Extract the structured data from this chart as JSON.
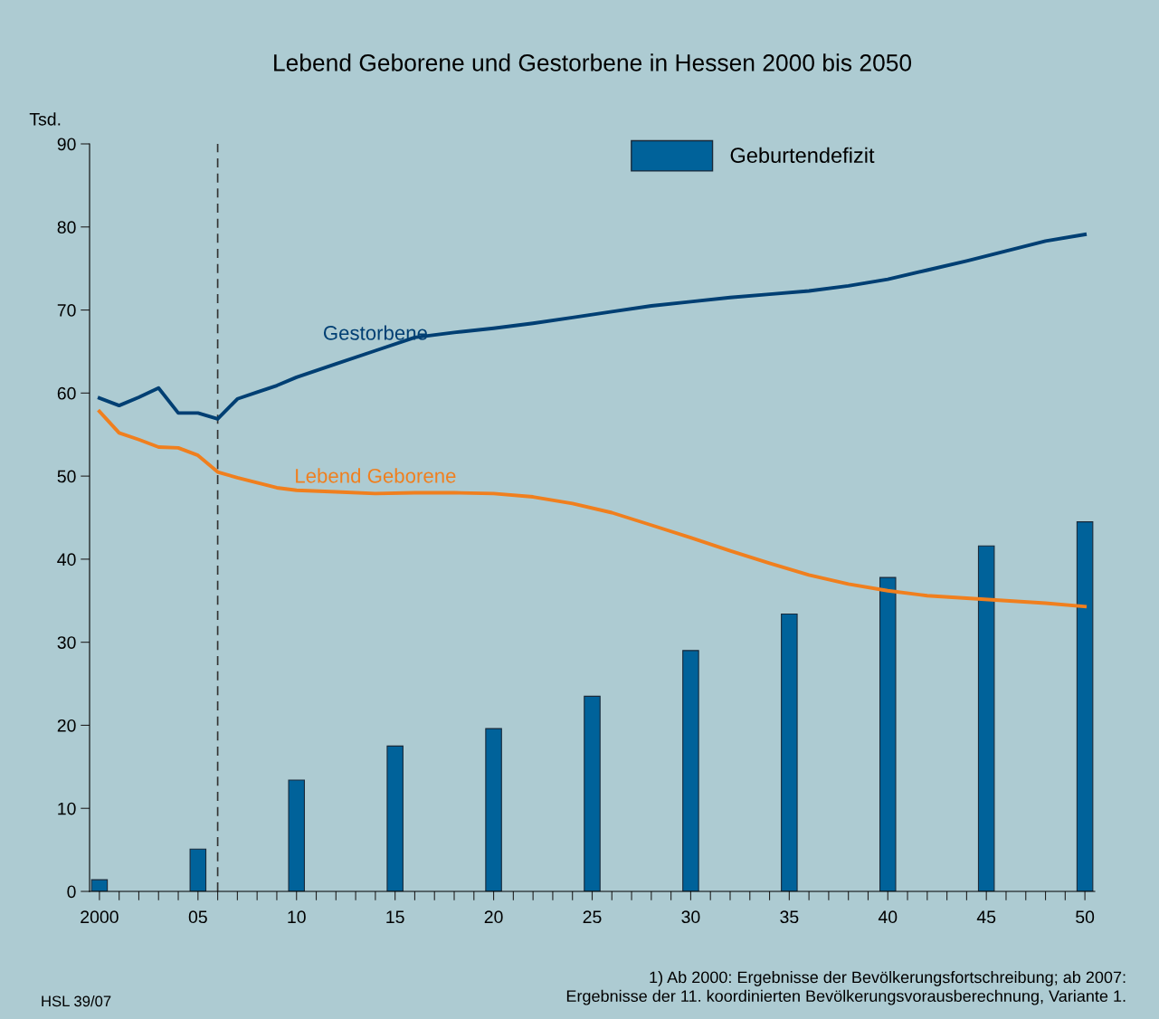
{
  "chart_data": {
    "type": "line",
    "title": "Lebend Geborene und Gestorbene in Hessen 2000 bis 2050",
    "ylabel": "Tsd.",
    "xlim": [
      1999.5,
      2050.5
    ],
    "xticks": [
      {
        "value": 2000,
        "label": "2000"
      },
      {
        "value": 2001,
        "label": null
      },
      {
        "value": 2002,
        "label": null
      },
      {
        "value": 2003,
        "label": null
      },
      {
        "value": 2004,
        "label": null
      },
      {
        "value": 2005,
        "label": "05"
      },
      {
        "value": 2006,
        "label": null
      },
      {
        "value": 2007,
        "label": null
      },
      {
        "value": 2008,
        "label": null
      },
      {
        "value": 2009,
        "label": null
      },
      {
        "value": 2010,
        "label": "10"
      },
      {
        "value": 2011,
        "label": null
      },
      {
        "value": 2012,
        "label": null
      },
      {
        "value": 2013,
        "label": null
      },
      {
        "value": 2014,
        "label": null
      },
      {
        "value": 2015,
        "label": "15"
      },
      {
        "value": 2016,
        "label": null
      },
      {
        "value": 2017,
        "label": null
      },
      {
        "value": 2018,
        "label": null
      },
      {
        "value": 2019,
        "label": null
      },
      {
        "value": 2020,
        "label": "20"
      },
      {
        "value": 2021,
        "label": null
      },
      {
        "value": 2022,
        "label": null
      },
      {
        "value": 2023,
        "label": null
      },
      {
        "value": 2024,
        "label": null
      },
      {
        "value": 2025,
        "label": "25"
      },
      {
        "value": 2026,
        "label": null
      },
      {
        "value": 2027,
        "label": null
      },
      {
        "value": 2028,
        "label": null
      },
      {
        "value": 2029,
        "label": null
      },
      {
        "value": 2030,
        "label": "30"
      },
      {
        "value": 2031,
        "label": null
      },
      {
        "value": 2032,
        "label": null
      },
      {
        "value": 2033,
        "label": null
      },
      {
        "value": 2034,
        "label": null
      },
      {
        "value": 2035,
        "label": "35"
      },
      {
        "value": 2036,
        "label": null
      },
      {
        "value": 2037,
        "label": null
      },
      {
        "value": 2038,
        "label": null
      },
      {
        "value": 2039,
        "label": null
      },
      {
        "value": 2040,
        "label": "40"
      },
      {
        "value": 2041,
        "label": null
      },
      {
        "value": 2042,
        "label": null
      },
      {
        "value": 2043,
        "label": null
      },
      {
        "value": 2044,
        "label": null
      },
      {
        "value": 2045,
        "label": "45"
      },
      {
        "value": 2046,
        "label": null
      },
      {
        "value": 2047,
        "label": null
      },
      {
        "value": 2048,
        "label": null
      },
      {
        "value": 2049,
        "label": null
      },
      {
        "value": 2050,
        "label": "50"
      }
    ],
    "ylim": [
      0,
      90
    ],
    "yticks": [
      0,
      10,
      20,
      30,
      40,
      50,
      60,
      70,
      80,
      90
    ],
    "grid": false,
    "legend": "top right",
    "ref_lines": [
      {
        "axis": "x",
        "value": 2006,
        "color": "#333333",
        "line_style": "dashed"
      }
    ],
    "series": [
      {
        "name": "Geburtendefizit",
        "type": "bar",
        "color": "#00629a",
        "x": [
          2000,
          2005,
          2010,
          2015,
          2020,
          2025,
          2030,
          2035,
          2040,
          2045,
          2050
        ],
        "values": [
          1.4,
          5.1,
          13.4,
          17.5,
          19.6,
          23.5,
          29.0,
          33.4,
          37.8,
          41.6,
          44.5
        ]
      },
      {
        "name": "Gestorbene",
        "color": "#003f73",
        "x": [
          2000,
          2001,
          2002,
          2003,
          2004,
          2005,
          2006,
          2007,
          2008,
          2009,
          2010,
          2012,
          2014,
          2016,
          2018,
          2020,
          2022,
          2024,
          2026,
          2028,
          2030,
          2032,
          2034,
          2036,
          2038,
          2040,
          2042,
          2044,
          2046,
          2048,
          2050
        ],
        "values": [
          59.4,
          58.5,
          59.5,
          60.6,
          57.6,
          57.6,
          56.9,
          59.3,
          60.1,
          60.9,
          61.9,
          63.5,
          65.1,
          66.7,
          67.3,
          67.8,
          68.4,
          69.1,
          69.8,
          70.5,
          71.0,
          71.5,
          71.9,
          72.3,
          72.9,
          73.7,
          74.8,
          75.9,
          77.1,
          78.3,
          79.1
        ]
      },
      {
        "name": "Lebend Geborene",
        "color": "#f07f1e",
        "x": [
          2000,
          2001,
          2002,
          2003,
          2004,
          2005,
          2006,
          2007,
          2008,
          2009,
          2010,
          2012,
          2014,
          2016,
          2018,
          2020,
          2022,
          2024,
          2026,
          2028,
          2030,
          2032,
          2034,
          2036,
          2038,
          2040,
          2042,
          2044,
          2046,
          2048,
          2050
        ],
        "values": [
          57.8,
          55.2,
          54.4,
          53.5,
          53.4,
          52.5,
          50.5,
          49.8,
          49.2,
          48.6,
          48.3,
          48.1,
          47.9,
          48.0,
          48.0,
          47.9,
          47.5,
          46.7,
          45.6,
          44.1,
          42.6,
          41.0,
          39.5,
          38.1,
          37.0,
          36.2,
          35.6,
          35.3,
          35.0,
          34.7,
          34.3
        ]
      }
    ],
    "annotations": [
      "1) Ab 2000: Ergebnisse der Bevölkerungsfortschreibung; ab 2007:\nErgebnisse der 11. koordinierten Bevölkerungsvorausberechnung, Variante 1.",
      "HSL 39/07"
    ]
  }
}
